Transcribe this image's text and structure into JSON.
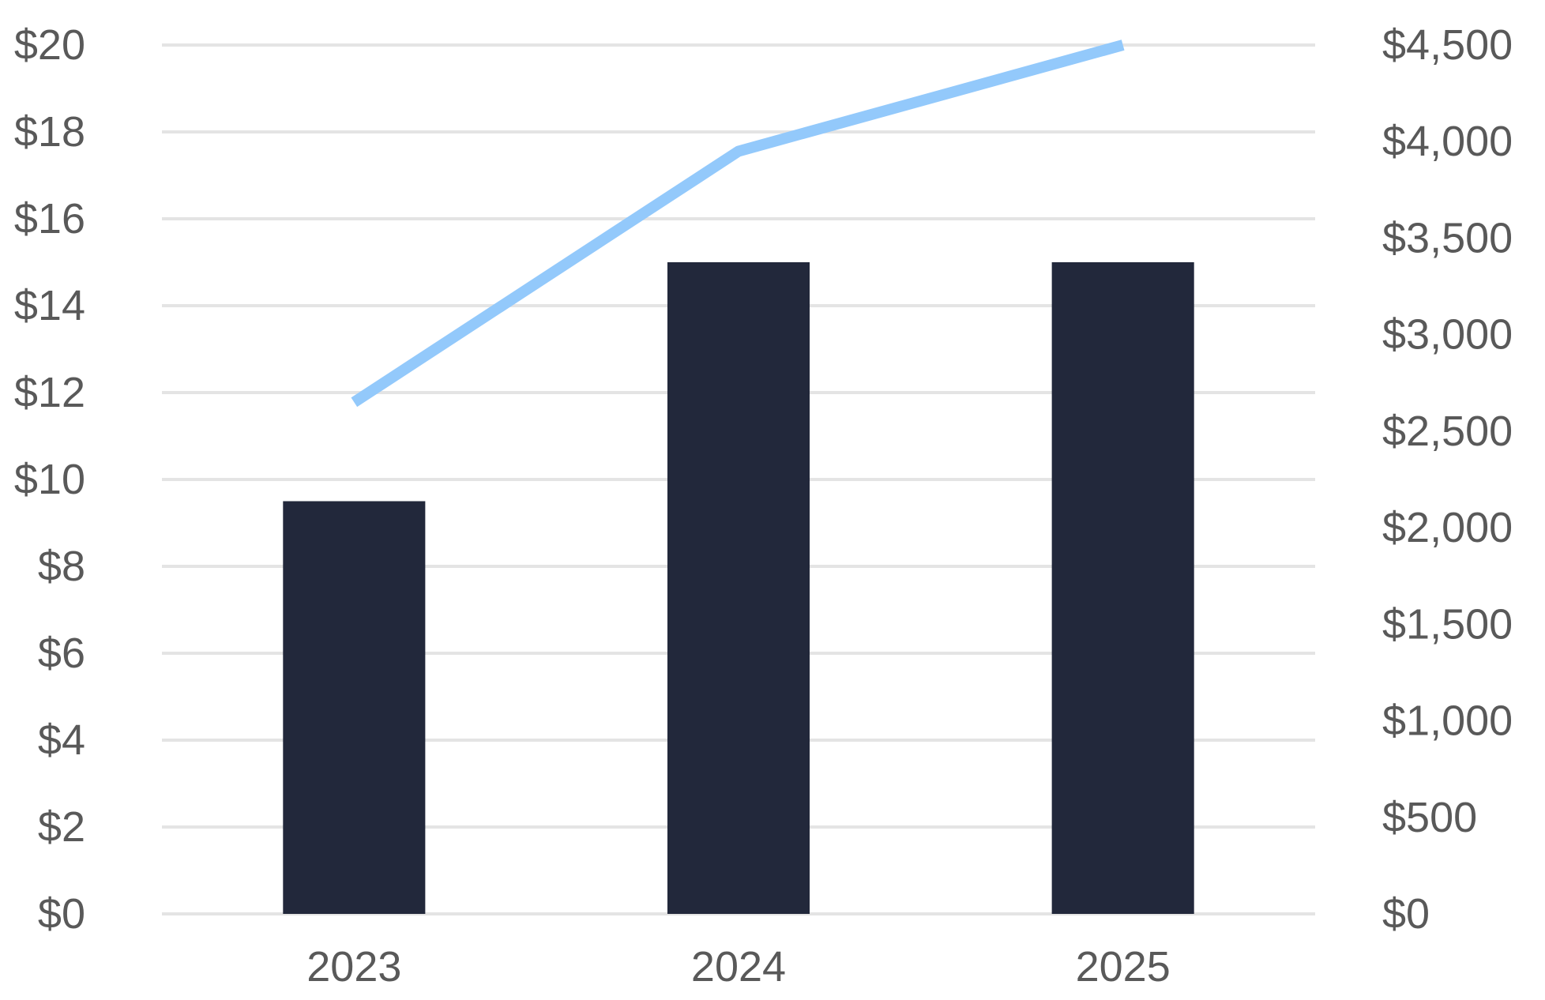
{
  "chart_data": {
    "type": "bar",
    "categories": [
      "2023",
      "2024",
      "2025"
    ],
    "series": [
      {
        "type": "bar",
        "axis": "left",
        "values": [
          9.5,
          15.0,
          15.0
        ],
        "color": "#22283b"
      },
      {
        "type": "line",
        "axis": "right",
        "values": [
          2650,
          3950,
          4500
        ],
        "color": "#93c9fb"
      }
    ],
    "y_left": {
      "range": [
        0,
        20
      ],
      "ticks": [
        0,
        2,
        4,
        6,
        8,
        10,
        12,
        14,
        16,
        18,
        20
      ],
      "tick_labels": [
        "$0",
        "$2",
        "$4",
        "$6",
        "$8",
        "$10",
        "$12",
        "$14",
        "$16",
        "$18",
        "$20"
      ]
    },
    "y_right": {
      "range": [
        0,
        4500
      ],
      "ticks": [
        0,
        500,
        1000,
        1500,
        2000,
        2500,
        3000,
        3500,
        4000,
        4500
      ],
      "tick_labels": [
        "$0",
        "$500",
        "$1,000",
        "$1,500",
        "$2,000",
        "$2,500",
        "$3,000",
        "$3,500",
        "$4,000",
        "$4,500"
      ]
    },
    "grid": true,
    "legend": "none",
    "title": "",
    "xlabel": "",
    "ylabel": ""
  }
}
